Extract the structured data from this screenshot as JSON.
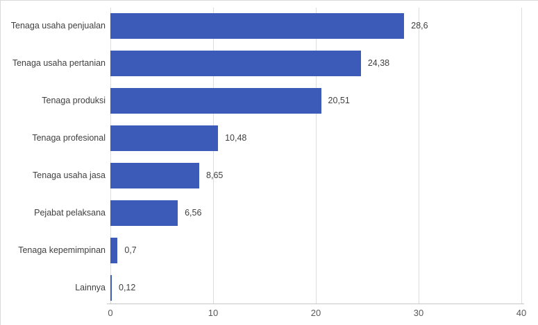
{
  "chart_data": {
    "type": "bar",
    "orientation": "horizontal",
    "title": "",
    "categories": [
      "Tenaga usaha penjualan",
      "Tenaga usaha pertanian",
      "Tenaga produksi",
      "Tenaga profesional",
      "Tenaga usaha jasa",
      "Pejabat pelaksana",
      "Tenaga kepemimpinan",
      "Lainnya"
    ],
    "values": [
      28.6,
      24.38,
      20.51,
      10.48,
      8.65,
      6.56,
      0.7,
      0.12
    ],
    "value_labels": [
      "28,6",
      "24,38",
      "20,51",
      "10,48",
      "8,65",
      "6,56",
      "0,7",
      "0,12"
    ],
    "xlim": [
      0,
      40
    ],
    "xticks": [
      0,
      10,
      20,
      30,
      40
    ],
    "xtick_labels": [
      "0",
      "10",
      "20",
      "30",
      "40"
    ],
    "bar_color": "#3c5ab8",
    "grid": true,
    "legend_position": "none"
  }
}
